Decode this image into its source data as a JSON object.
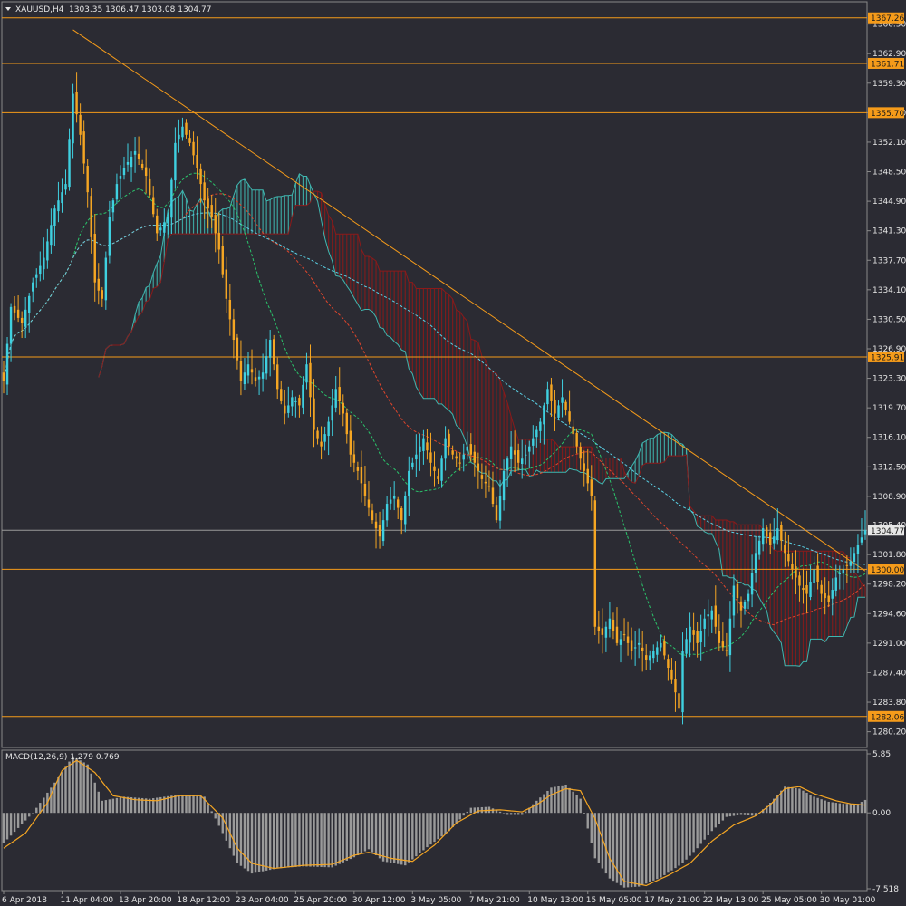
{
  "chart_data": [
    {
      "type": "candlestick",
      "symbol_label": "XAUUSD,H4",
      "ohlc_label": "1303.35 1306.47 1303.08 1304.77",
      "current_price": 1304.77,
      "current_price_label": "1304.77",
      "ylim": [
        1278.5,
        1369.0
      ],
      "y_ticks": [
        1366.5,
        1362.9,
        1359.3,
        1355.7,
        1352.1,
        1348.5,
        1344.9,
        1341.3,
        1337.7,
        1334.1,
        1330.5,
        1326.9,
        1323.3,
        1319.7,
        1316.1,
        1312.5,
        1308.9,
        1305.4,
        1301.8,
        1298.2,
        1294.6,
        1291.0,
        1287.4,
        1283.8,
        1280.2
      ],
      "y_tick_labels": [
        "1366.50",
        "1362.90",
        "1359.30",
        "1355.70",
        "1352.10",
        "1348.50",
        "1344.90",
        "1341.30",
        "1337.70",
        "1334.10",
        "1330.50",
        "1326.90",
        "1323.30",
        "1319.70",
        "1316.10",
        "1312.50",
        "1308.90",
        "1305.40",
        "1301.80",
        "1298.20",
        "1294.60",
        "1291.00",
        "1287.40",
        "1283.80",
        "1280.20"
      ],
      "x_labels": [
        "6 Apr 2018",
        "11 Apr 04:00",
        "13 Apr 20:00",
        "18 Apr 12:00",
        "23 Apr 04:00",
        "25 Apr 20:00",
        "30 Apr 12:00",
        "3 May 05:00",
        "7 May 21:00",
        "10 May 13:00",
        "15 May 05:00",
        "17 May 21:00",
        "22 May 13:00",
        "25 May 05:00",
        "30 May 01:00"
      ],
      "x_label_bars": [
        0,
        16,
        32,
        48,
        64,
        80,
        96,
        112,
        128,
        144,
        160,
        176,
        192,
        208,
        224
      ],
      "horizontal_levels": [
        {
          "value": 1367.26,
          "label": "1367.26"
        },
        {
          "value": 1361.71,
          "label": "1361.71"
        },
        {
          "value": 1355.7,
          "label": "1355.70"
        },
        {
          "value": 1325.91,
          "label": "1325.91"
        },
        {
          "value": 1300.0,
          "label": "1300.00"
        },
        {
          "value": 1282.06,
          "label": "1282.06"
        }
      ],
      "trendline": {
        "bar_start": 19,
        "value_start": 1365.8,
        "bar_end": 236,
        "value_end": 1299.8
      },
      "price_anchors": [
        [
          0,
          1323
        ],
        [
          2,
          1332
        ],
        [
          5,
          1330
        ],
        [
          8,
          1335
        ],
        [
          11,
          1338
        ],
        [
          14,
          1344
        ],
        [
          17,
          1347
        ],
        [
          19,
          1358
        ],
        [
          21,
          1353
        ],
        [
          23,
          1346
        ],
        [
          25,
          1335
        ],
        [
          27,
          1333
        ],
        [
          29,
          1343
        ],
        [
          31,
          1347
        ],
        [
          33,
          1349
        ],
        [
          36,
          1351
        ],
        [
          39,
          1348
        ],
        [
          42,
          1341
        ],
        [
          45,
          1343
        ],
        [
          47,
          1352
        ],
        [
          49,
          1354
        ],
        [
          51,
          1352
        ],
        [
          53,
          1349
        ],
        [
          55,
          1345
        ],
        [
          57,
          1343
        ],
        [
          59,
          1339
        ],
        [
          61,
          1333
        ],
        [
          63,
          1328
        ],
        [
          65,
          1323
        ],
        [
          67,
          1325
        ],
        [
          69,
          1323
        ],
        [
          71,
          1324
        ],
        [
          73,
          1328
        ],
        [
          75,
          1322
        ],
        [
          77,
          1319
        ],
        [
          79,
          1321
        ],
        [
          81,
          1320
        ],
        [
          83,
          1325
        ],
        [
          85,
          1317
        ],
        [
          87,
          1315
        ],
        [
          89,
          1318
        ],
        [
          91,
          1322
        ],
        [
          93,
          1319
        ],
        [
          95,
          1314
        ],
        [
          97,
          1312
        ],
        [
          99,
          1309
        ],
        [
          101,
          1306
        ],
        [
          103,
          1304
        ],
        [
          105,
          1308
        ],
        [
          107,
          1309
        ],
        [
          109,
          1306
        ],
        [
          111,
          1312
        ],
        [
          113,
          1314
        ],
        [
          115,
          1316
        ],
        [
          117,
          1313
        ],
        [
          119,
          1311
        ],
        [
          121,
          1316
        ],
        [
          123,
          1314
        ],
        [
          125,
          1313
        ],
        [
          127,
          1315
        ],
        [
          129,
          1313
        ],
        [
          131,
          1311
        ],
        [
          133,
          1310
        ],
        [
          135,
          1306
        ],
        [
          137,
          1312
        ],
        [
          139,
          1315
        ],
        [
          141,
          1313
        ],
        [
          143,
          1314
        ],
        [
          145,
          1316
        ],
        [
          147,
          1318
        ],
        [
          149,
          1322
        ],
        [
          151,
          1319
        ],
        [
          153,
          1321
        ],
        [
          155,
          1318
        ],
        [
          157,
          1315
        ],
        [
          159,
          1312
        ],
        [
          161,
          1309
        ],
        [
          162,
          1293
        ],
        [
          164,
          1292
        ],
        [
          166,
          1294
        ],
        [
          168,
          1291
        ],
        [
          170,
          1292
        ],
        [
          172,
          1290
        ],
        [
          174,
          1291
        ],
        [
          176,
          1289
        ],
        [
          178,
          1290
        ],
        [
          180,
          1291
        ],
        [
          182,
          1288
        ],
        [
          184,
          1285
        ],
        [
          185,
          1283
        ],
        [
          186,
          1290
        ],
        [
          188,
          1293
        ],
        [
          190,
          1291
        ],
        [
          192,
          1294
        ],
        [
          194,
          1295
        ],
        [
          196,
          1291
        ],
        [
          198,
          1290
        ],
        [
          200,
          1298
        ],
        [
          202,
          1295
        ],
        [
          204,
          1297
        ],
        [
          206,
          1302
        ],
        [
          208,
          1305
        ],
        [
          210,
          1303
        ],
        [
          212,
          1305
        ],
        [
          214,
          1302
        ],
        [
          216,
          1300
        ],
        [
          218,
          1298
        ],
        [
          220,
          1297
        ],
        [
          222,
          1300
        ],
        [
          224,
          1297
        ],
        [
          226,
          1296
        ],
        [
          228,
          1299
        ],
        [
          230,
          1300
        ],
        [
          232,
          1301
        ],
        [
          234,
          1303
        ],
        [
          236,
          1304.77
        ]
      ],
      "moving_averages": [
        {
          "color": "#2bc46b",
          "period": 20,
          "style": "dashed"
        },
        {
          "color": "#e0452b",
          "period": 50,
          "style": "dashed"
        },
        {
          "color": "#5ad2e6",
          "period": 100,
          "style": "dashed"
        }
      ],
      "ichimoku": {
        "bullish_color": "#3fb7b0",
        "bearish_color": "#8b1a1a"
      },
      "colors": {
        "bull": "#3fd0e0",
        "bear": "#f5a623",
        "level": "#f59b1a",
        "trendline": "#f59b1a",
        "background": "#2b2b33",
        "text": "#e6e6e6"
      }
    },
    {
      "type": "histogram+line",
      "label": "MACD(12,26,9) 1.279 0.769",
      "ylim": [
        -7.518,
        5.85
      ],
      "y_ticks": [
        5.85,
        0.0,
        -7.518
      ],
      "y_tick_labels": [
        "5.85",
        "0.00",
        "-7.518"
      ],
      "main_anchors": [
        [
          0,
          -3
        ],
        [
          8,
          0
        ],
        [
          14,
          3
        ],
        [
          19,
          5.6
        ],
        [
          23,
          4.8
        ],
        [
          27,
          1.2
        ],
        [
          33,
          1.6
        ],
        [
          40,
          1.4
        ],
        [
          48,
          1.8
        ],
        [
          55,
          1.6
        ],
        [
          60,
          -2
        ],
        [
          64,
          -5
        ],
        [
          68,
          -6
        ],
        [
          75,
          -5.5
        ],
        [
          82,
          -5.3
        ],
        [
          90,
          -5.4
        ],
        [
          96,
          -4.4
        ],
        [
          100,
          -3.6
        ],
        [
          104,
          -4.8
        ],
        [
          110,
          -5.2
        ],
        [
          116,
          -3.4
        ],
        [
          122,
          -1.8
        ],
        [
          128,
          0.5
        ],
        [
          133,
          0.6
        ],
        [
          138,
          -0.2
        ],
        [
          142,
          -0.2
        ],
        [
          146,
          1.2
        ],
        [
          150,
          2.5
        ],
        [
          154,
          2.8
        ],
        [
          158,
          1.4
        ],
        [
          162,
          -4.5
        ],
        [
          166,
          -6.5
        ],
        [
          170,
          -7.4
        ],
        [
          174,
          -7.3
        ],
        [
          180,
          -6.4
        ],
        [
          186,
          -5
        ],
        [
          190,
          -3.5
        ],
        [
          194,
          -1.8
        ],
        [
          198,
          -0.4
        ],
        [
          202,
          -0.2
        ],
        [
          206,
          -0.3
        ],
        [
          210,
          1
        ],
        [
          214,
          2.6
        ],
        [
          218,
          2.4
        ],
        [
          222,
          1.6
        ],
        [
          226,
          1.1
        ],
        [
          230,
          0.9
        ],
        [
          234,
          0.9
        ],
        [
          236,
          1.279
        ]
      ],
      "signal_anchors": [
        [
          0,
          -3.5
        ],
        [
          6,
          -2
        ],
        [
          12,
          1
        ],
        [
          16,
          4.2
        ],
        [
          20,
          5.2
        ],
        [
          25,
          4
        ],
        [
          30,
          1.7
        ],
        [
          36,
          1.3
        ],
        [
          42,
          1.2
        ],
        [
          48,
          1.7
        ],
        [
          54,
          1.7
        ],
        [
          60,
          -0.5
        ],
        [
          64,
          -3.5
        ],
        [
          68,
          -5
        ],
        [
          74,
          -5.5
        ],
        [
          82,
          -5.2
        ],
        [
          90,
          -5.1
        ],
        [
          96,
          -4.2
        ],
        [
          100,
          -3.9
        ],
        [
          106,
          -4.5
        ],
        [
          112,
          -4.8
        ],
        [
          118,
          -3.2
        ],
        [
          124,
          -1
        ],
        [
          130,
          0.2
        ],
        [
          136,
          0.3
        ],
        [
          142,
          0.1
        ],
        [
          146,
          0.8
        ],
        [
          150,
          1.8
        ],
        [
          154,
          2.4
        ],
        [
          158,
          2.2
        ],
        [
          162,
          -0.6
        ],
        [
          166,
          -4.5
        ],
        [
          170,
          -6.8
        ],
        [
          176,
          -7.2
        ],
        [
          182,
          -6.2
        ],
        [
          188,
          -5
        ],
        [
          194,
          -2.8
        ],
        [
          200,
          -1.2
        ],
        [
          206,
          -0.3
        ],
        [
          210,
          0.8
        ],
        [
          214,
          2.4
        ],
        [
          218,
          2.6
        ],
        [
          222,
          1.9
        ],
        [
          228,
          1.2
        ],
        [
          232,
          0.9
        ],
        [
          236,
          0.769
        ]
      ],
      "colors": {
        "histogram": "#9a9a9a",
        "signal": "#f5a623"
      }
    }
  ]
}
